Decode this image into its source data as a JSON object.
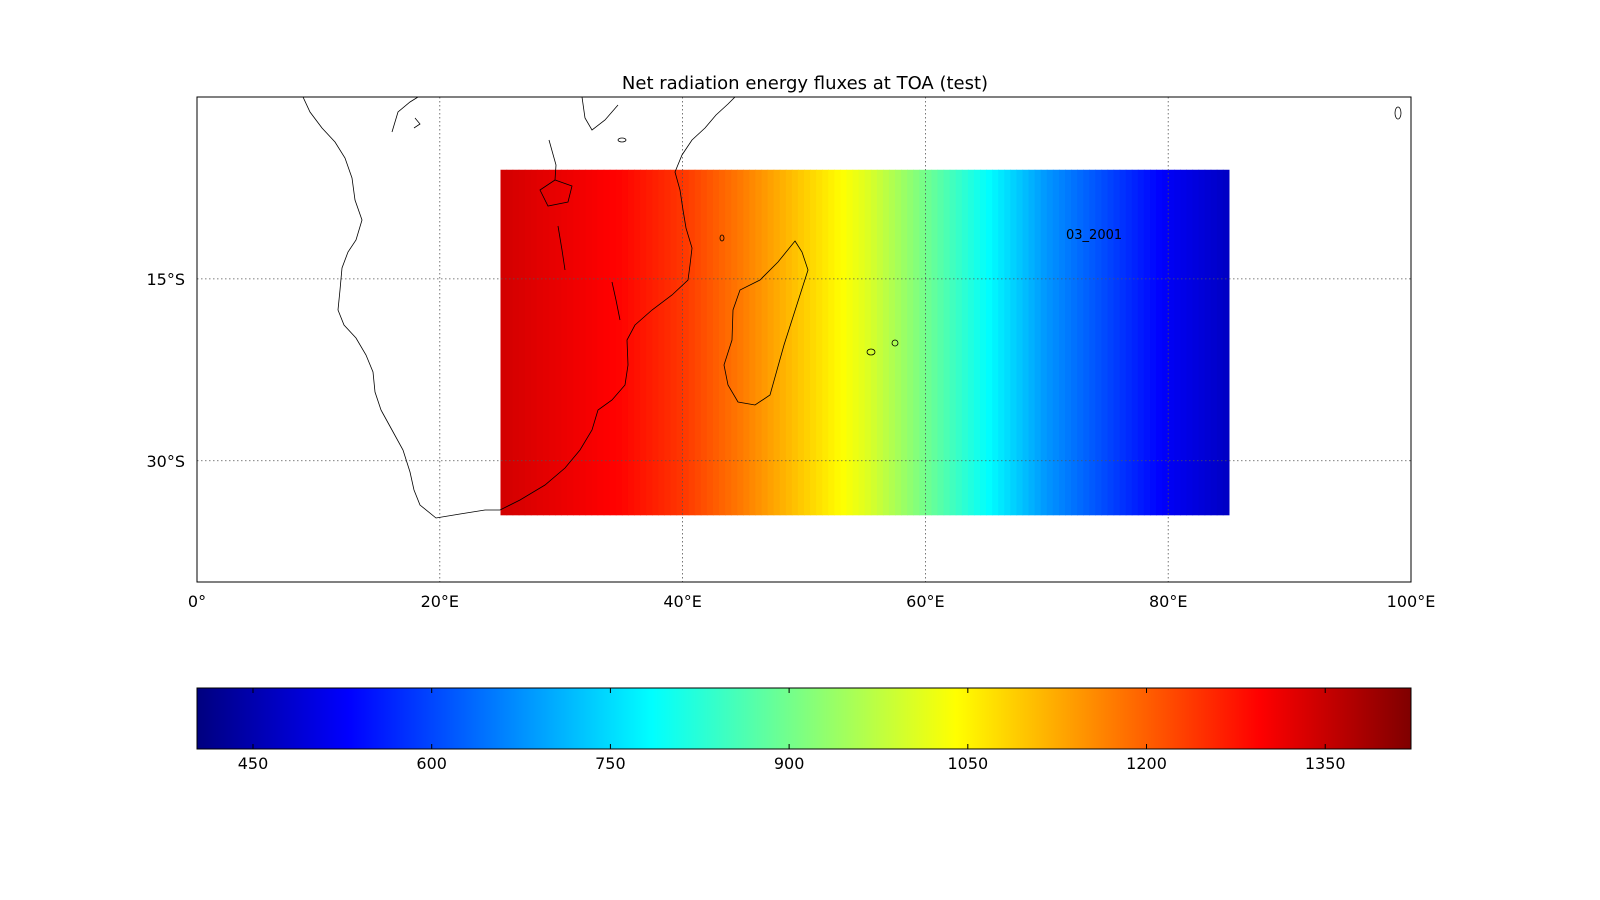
{
  "title": "Net radiation energy fluxes at TOA (test)",
  "annotation": "03_2001",
  "map": {
    "lon_range": [
      0,
      100
    ],
    "lat_range": [
      -40,
      0
    ],
    "data_lon_range": [
      25,
      85
    ],
    "data_lat_range": [
      -34.5,
      -6
    ],
    "lon_ticks": [
      {
        "value": 0,
        "label": "0°"
      },
      {
        "value": 20,
        "label": "20°E"
      },
      {
        "value": 40,
        "label": "40°E"
      },
      {
        "value": 60,
        "label": "60°E"
      },
      {
        "value": 80,
        "label": "80°E"
      },
      {
        "value": 100,
        "label": "100°E"
      }
    ],
    "lat_ticks": [
      {
        "value": -15,
        "label": "15°S"
      },
      {
        "value": -30,
        "label": "30°S"
      }
    ],
    "gridlines": true,
    "colormap": "jet"
  },
  "colorbar": {
    "min": 403,
    "max": 1422,
    "orientation": "horizontal",
    "ticks": [
      {
        "value": 450,
        "label": "450"
      },
      {
        "value": 600,
        "label": "600"
      },
      {
        "value": 750,
        "label": "750"
      },
      {
        "value": 900,
        "label": "900"
      },
      {
        "value": 1050,
        "label": "1050"
      },
      {
        "value": 1200,
        "label": "1200"
      },
      {
        "value": 1350,
        "label": "1350"
      }
    ]
  },
  "field_profile": {
    "units_note": "",
    "lon": [
      25,
      35,
      40,
      45,
      50,
      55,
      60,
      65,
      70,
      75,
      80,
      85
    ],
    "value": [
      1340,
      1290,
      1240,
      1170,
      1090,
      1010,
      900,
      790,
      680,
      600,
      520,
      470
    ]
  }
}
